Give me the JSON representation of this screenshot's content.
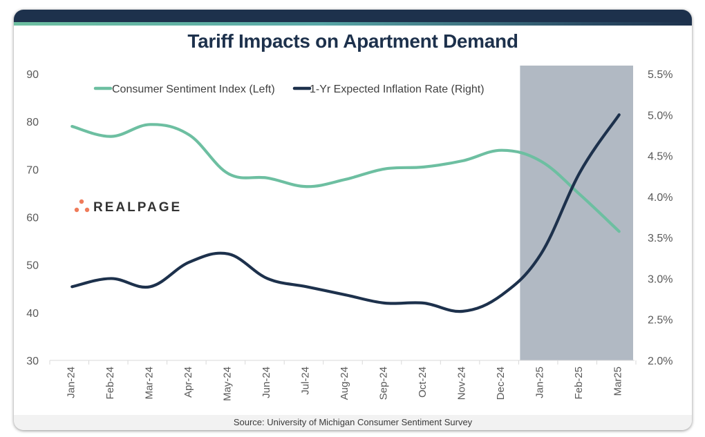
{
  "title": "Tariff Impacts on Apartment Demand",
  "source": "Source: University of Michigan Consumer Sentiment Survey",
  "logo": {
    "text": "REALPAGE",
    "dot_color": "#ef7b5a"
  },
  "colors": {
    "header_bar": "#1d314c",
    "sentiment": "#6dbfa1",
    "inflation": "#1d314c",
    "highlight_band": "#b1b9c3",
    "title": "#1d314c"
  },
  "chart_data": {
    "type": "line",
    "title": "Tariff Impacts on Apartment Demand",
    "categories": [
      "Jan-24",
      "Feb-24",
      "Mar-24",
      "Apr-24",
      "May-24",
      "Jun-24",
      "Jul-24",
      "Aug-24",
      "Sep-24",
      "Oct-24",
      "Nov-24",
      "Dec-24",
      "Jan-25",
      "Feb-25",
      "Mar25"
    ],
    "series": [
      {
        "name": "Consumer Sentiment Index (Left)",
        "axis": "left",
        "color": "#6dbfa1",
        "values": [
          79.0,
          76.9,
          79.4,
          77.2,
          69.1,
          68.2,
          66.4,
          67.9,
          70.1,
          70.5,
          71.8,
          74.0,
          71.7,
          64.7,
          57.0
        ]
      },
      {
        "name": "1-Yr Expected Inflation Rate (Right)",
        "axis": "right",
        "color": "#1d314c",
        "values": [
          2.9,
          3.0,
          2.9,
          3.2,
          3.3,
          3.0,
          2.9,
          2.8,
          2.7,
          2.7,
          2.6,
          2.8,
          3.3,
          4.3,
          5.0
        ]
      }
    ],
    "left_axis": {
      "min": 30,
      "max": 90,
      "ticks": [
        "90",
        "80",
        "70",
        "60",
        "50",
        "40",
        "30"
      ],
      "tick_values": [
        90,
        80,
        70,
        60,
        50,
        40,
        30
      ]
    },
    "right_axis": {
      "min": 2.0,
      "max": 5.5,
      "ticks": [
        "5.5%",
        "5.0%",
        "4.5%",
        "4.0%",
        "3.5%",
        "3.0%",
        "2.5%",
        "2.0%"
      ],
      "tick_values": [
        5.5,
        5.0,
        4.5,
        4.0,
        3.5,
        3.0,
        2.5,
        2.0
      ]
    },
    "highlight": {
      "from": "Jan-25",
      "to": "Mar25",
      "description": "shaded period"
    },
    "legend_position": "top-center",
    "grid": false,
    "xlabel": "",
    "ylabel": ""
  }
}
